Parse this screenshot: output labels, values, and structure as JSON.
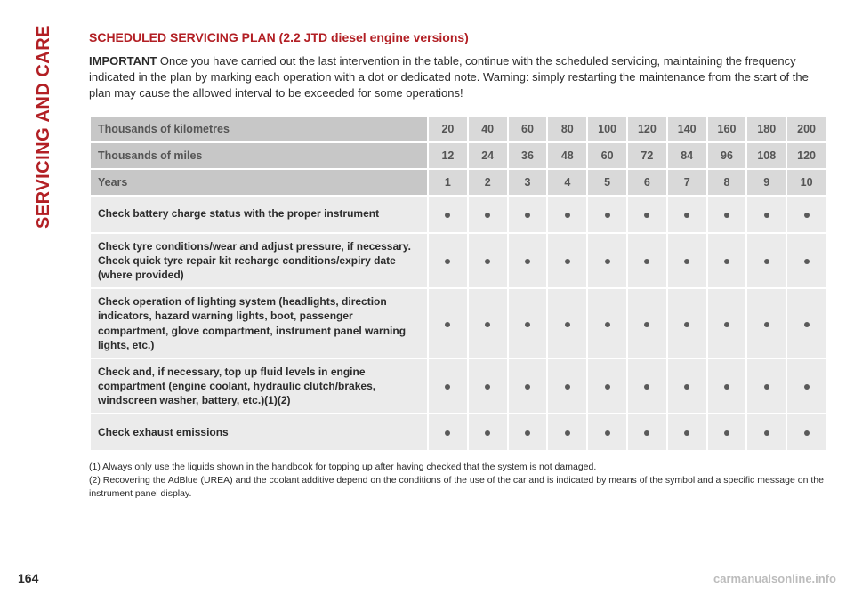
{
  "colors": {
    "brand_red": "#b21f24",
    "header_bg": "#c7c7c7",
    "header_value_bg": "#d9d9d9",
    "row_bg": "#ebebeb",
    "dot": "#5a5a5a",
    "text": "#2b2b2b",
    "watermark": "#bcbcbc"
  },
  "sidebar": {
    "label": "SERVICING AND CARE"
  },
  "title": "SCHEDULED SERVICING PLAN (2.2 JTD diesel engine versions)",
  "intro_strong": "IMPORTANT",
  "intro_rest": " Once you have carried out the last intervention in the table, continue with the scheduled servicing, maintaining the frequency indicated in the plan by marking each operation with a dot or dedicated note. Warning: simply restarting the maintenance from the start of the plan may cause the allowed interval to be exceeded for some operations!",
  "table": {
    "headers": [
      {
        "label": "Thousands of kilometres",
        "values": [
          "20",
          "40",
          "60",
          "80",
          "100",
          "120",
          "140",
          "160",
          "180",
          "200"
        ]
      },
      {
        "label": "Thousands of miles",
        "values": [
          "12",
          "24",
          "36",
          "48",
          "60",
          "72",
          "84",
          "96",
          "108",
          "120"
        ]
      },
      {
        "label": "Years",
        "values": [
          "1",
          "2",
          "3",
          "4",
          "5",
          "6",
          "7",
          "8",
          "9",
          "10"
        ]
      }
    ],
    "tasks": [
      "Check battery charge status with the proper instrument",
      "Check tyre conditions/wear and adjust pressure, if necessary. Check quick tyre repair kit recharge conditions/expiry date (where provided)",
      "Check operation of lighting system (headlights, direction indicators, hazard warning lights, boot, passenger compartment, glove compartment, instrument panel warning lights, etc.)",
      "Check and, if necessary, top up fluid levels in engine compartment (engine coolant, hydraulic clutch/brakes, windscreen washer, battery, etc.)(1)(2)",
      "Check exhaust emissions"
    ],
    "num_cols": 10
  },
  "footnotes": [
    "(1) Always only use the liquids shown in the handbook for topping up after having checked that the system is not damaged.",
    "(2) Recovering the AdBlue (UREA) and the coolant additive depend on the conditions of the use of the car and is indicated by means of the symbol and a specific message on the instrument panel display."
  ],
  "page_number": "164",
  "watermark": "carmanualsonline.info"
}
